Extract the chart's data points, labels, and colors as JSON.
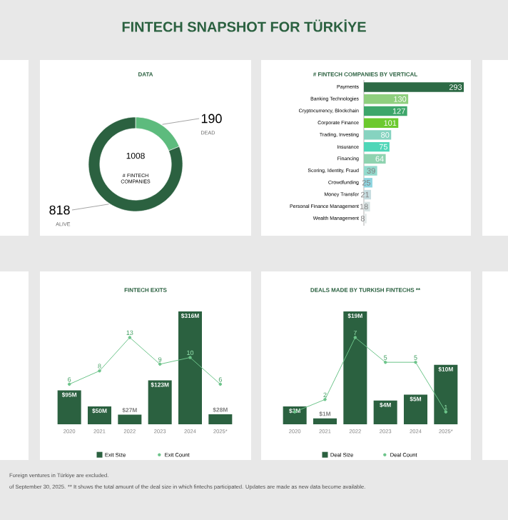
{
  "chart_data": [
    {
      "type": "donut",
      "title": "DATA",
      "categories": [
        "DEAD",
        "ALIVE"
      ],
      "values": [
        190,
        818
      ],
      "colors": [
        "#5dbb7d",
        "#2b6140"
      ],
      "data_labels": true,
      "annotations": [
        "FINTECH SNAPSHOT FOR TÜRKİYE",
        "1008",
        "# FINTECH COMPANIES"
      ]
    },
    {
      "type": "bar",
      "orientation": "horizontal",
      "title": "# FINTECH COMPANIES BY VERTICAL",
      "categories": [
        "Payments",
        "Banking Technologies",
        "Cryptocurrency, Blockchain",
        "Corporate Finance",
        "Trading, Investing",
        "Insurance",
        "Financing",
        "Scoring, Identity, Fraud",
        "Crowdfunding",
        "Money Transfer",
        "Personal Finance Management",
        "Wealth Management"
      ],
      "values": [
        293,
        130,
        127,
        101,
        80,
        75,
        64,
        39,
        25,
        21,
        18,
        8
      ],
      "colors": [
        "#2d6a45",
        "#8fcf7e",
        "#3da66a",
        "#6cc92e",
        "#86d3c0",
        "#4fd6b8",
        "#8fd3b0",
        "#93dacd",
        "#8fd5e0",
        "#c7dde0",
        "#d8e3e3",
        "#e3e8e8"
      ],
      "data_labels": true,
      "tick_labels": "y"
    },
    {
      "type": "bar",
      "title": "FINTECH EXITS",
      "categories": [
        "2020",
        "2021",
        "2022",
        "2023",
        "2024",
        "2025*"
      ],
      "series": [
        {
          "name": "Exit Size",
          "color": "#2b6140",
          "values": [
            95,
            50,
            27,
            123,
            316,
            28
          ],
          "value_labels": [
            "$95M",
            "$50M",
            "$27M",
            "$123M",
            "$316M",
            "$28M"
          ]
        },
        {
          "name": "Exit Count",
          "type": "line",
          "axis": "y2",
          "marker": "circle",
          "color": "#6cc48a",
          "values": [
            6,
            8,
            13,
            9,
            10,
            6
          ],
          "value_labels": [
            "6",
            "8",
            "13",
            "9",
            "10",
            "6"
          ]
        }
      ],
      "legend": "bottom",
      "tick_labels": "x"
    },
    {
      "type": "bar",
      "title": "DEALS MADE BY TURKISH FINTECHS **",
      "categories": [
        "2020",
        "2021",
        "2022",
        "2023",
        "2024",
        "2025*"
      ],
      "series": [
        {
          "name": "Deal Size",
          "color": "#2b6140",
          "values": [
            3,
            1,
            19,
            4,
            5,
            10
          ],
          "value_labels": [
            "$3M",
            "$1M",
            "$19M",
            "$4M",
            "$5M",
            "$10M"
          ]
        },
        {
          "name": "Deal Count",
          "type": "line",
          "axis": "y2",
          "marker": "circle",
          "color": "#6cc48a",
          "values": [
            1,
            2,
            7,
            5,
            5,
            1
          ],
          "value_labels": [
            null,
            "2",
            "7",
            "5",
            "5",
            "1"
          ]
        }
      ],
      "legend": "bottom",
      "tick_labels": "x",
      "annotations": [
        "Foreign ventures in Türkiye are excluded.",
        "of September 30, 2025. ** It shows the total amount of the deal size in which fintechs participated. Updates are made as new data become available."
      ]
    }
  ]
}
